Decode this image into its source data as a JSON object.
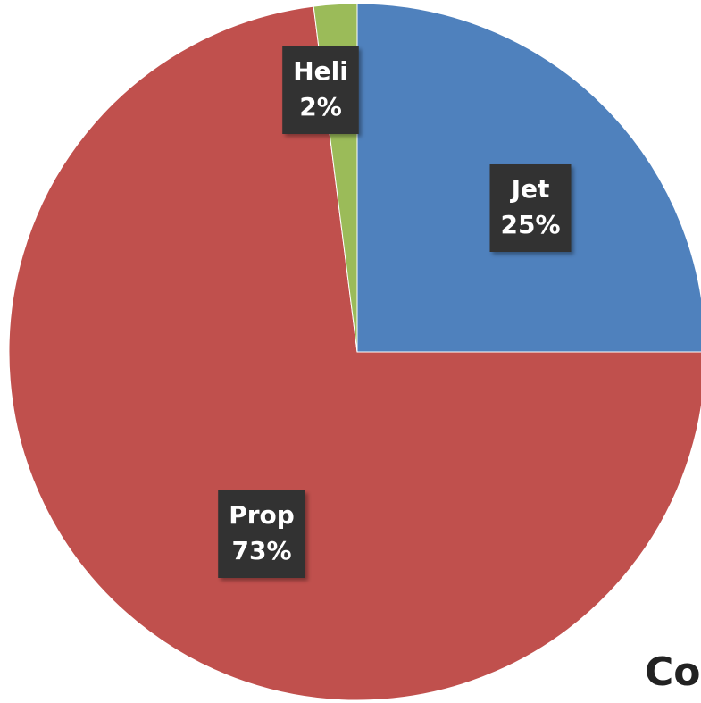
{
  "chart_data": {
    "type": "pie",
    "slices": [
      {
        "name": "Jet",
        "value": 25,
        "label": "25%",
        "color": "#4f81bd"
      },
      {
        "name": "Prop",
        "value": 73,
        "label": "73%",
        "color": "#c0504d"
      },
      {
        "name": "Heli",
        "value": 2,
        "label": "2%",
        "color": "#9bbb59"
      }
    ]
  },
  "overflow_text": "Co"
}
